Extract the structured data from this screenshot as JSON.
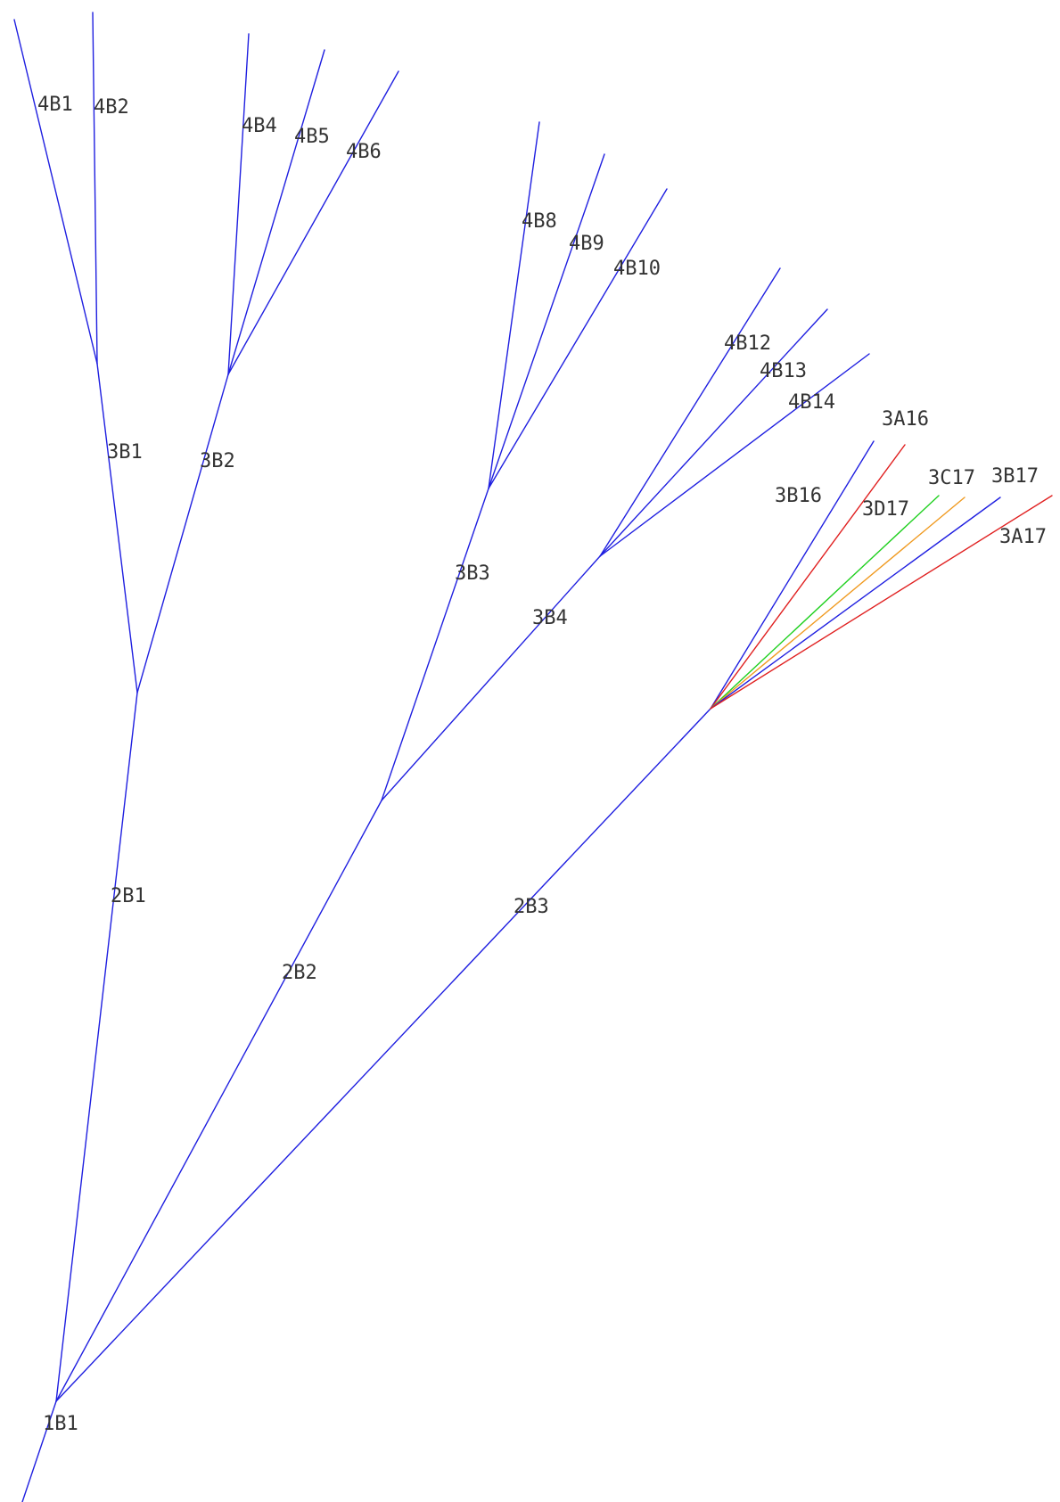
{
  "colors": {
    "main": "#1f1fe0",
    "red": "#e02020",
    "green": "#20d020",
    "orange": "#f09a20",
    "label": "#333333",
    "background": "#ffffff"
  },
  "segments": [
    {
      "id": "1B1",
      "label": "1B1",
      "color": "main"
    },
    {
      "id": "2B1",
      "label": "2B1",
      "color": "main"
    },
    {
      "id": "2B2",
      "label": "2B2",
      "color": "main"
    },
    {
      "id": "2B3",
      "label": "2B3",
      "color": "main"
    },
    {
      "id": "3B1",
      "label": "3B1",
      "color": "main"
    },
    {
      "id": "3B2",
      "label": "3B2",
      "color": "main"
    },
    {
      "id": "3B3",
      "label": "3B3",
      "color": "main"
    },
    {
      "id": "3B4",
      "label": "3B4",
      "color": "main"
    },
    {
      "id": "4B1",
      "label": "4B1",
      "color": "main"
    },
    {
      "id": "4B2",
      "label": "4B2",
      "color": "main"
    },
    {
      "id": "4B4",
      "label": "4B4",
      "color": "main"
    },
    {
      "id": "4B5",
      "label": "4B5",
      "color": "main"
    },
    {
      "id": "4B6",
      "label": "4B6",
      "color": "main"
    },
    {
      "id": "4B8",
      "label": "4B8",
      "color": "main"
    },
    {
      "id": "4B9",
      "label": "4B9",
      "color": "main"
    },
    {
      "id": "4B10",
      "label": "4B10",
      "color": "main"
    },
    {
      "id": "4B12",
      "label": "4B12",
      "color": "main"
    },
    {
      "id": "4B13",
      "label": "4B13",
      "color": "main"
    },
    {
      "id": "4B14",
      "label": "4B14",
      "color": "main"
    },
    {
      "id": "3B16",
      "label": "3B16",
      "color": "main"
    },
    {
      "id": "3A16",
      "label": "3A16",
      "color": "red"
    },
    {
      "id": "3D17",
      "label": "3D17",
      "color": "green"
    },
    {
      "id": "3C17",
      "label": "3C17",
      "color": "orange"
    },
    {
      "id": "3B17",
      "label": "3B17",
      "color": "main"
    },
    {
      "id": "3A17",
      "label": "3A17",
      "color": "red"
    }
  ]
}
